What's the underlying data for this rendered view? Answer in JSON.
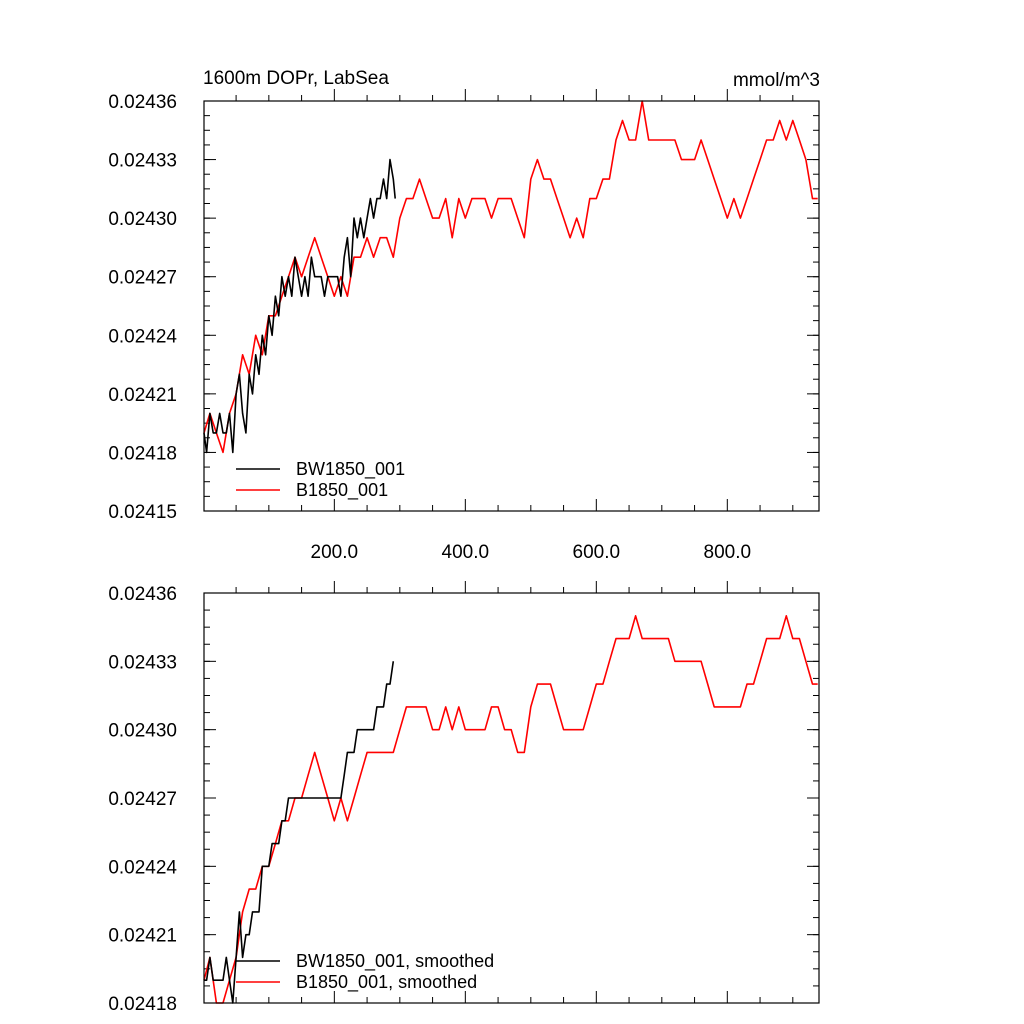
{
  "chart_data": [
    {
      "type": "line",
      "title": "1600m DOPr, LabSea",
      "units": "mmol/m^3",
      "xlim": [
        1,
        940
      ],
      "ylim": [
        0.02415,
        0.02436
      ],
      "x_ticks": [
        200,
        400,
        600,
        800
      ],
      "x_tick_labels": [
        "200.0",
        "400.0",
        "600.0",
        "800.0"
      ],
      "y_ticks": [
        0.02415,
        0.02418,
        0.02421,
        0.02424,
        0.02427,
        0.0243,
        0.02433,
        0.02436
      ],
      "y_tick_labels": [
        "0.02415",
        "0.02418",
        "0.02421",
        "0.02424",
        "0.02427",
        "0.02430",
        "0.02433",
        "0.02436"
      ],
      "grid": false,
      "legend_position": "bottom-left",
      "series": [
        {
          "name": "BW1850_001",
          "color": "#000000",
          "x": [
            1,
            5,
            10,
            15,
            20,
            25,
            30,
            35,
            40,
            45,
            50,
            55,
            60,
            65,
            70,
            75,
            80,
            85,
            90,
            95,
            100,
            105,
            110,
            115,
            120,
            125,
            130,
            135,
            140,
            145,
            150,
            155,
            160,
            165,
            170,
            175,
            180,
            185,
            190,
            195,
            200,
            205,
            210,
            215,
            220,
            225,
            230,
            235,
            240,
            245,
            250,
            255,
            260,
            265,
            270,
            275,
            280,
            285,
            290,
            293
          ],
          "y": [
            0.02419,
            0.02418,
            0.0242,
            0.02419,
            0.02419,
            0.0242,
            0.02419,
            0.02419,
            0.0242,
            0.02418,
            0.02421,
            0.02422,
            0.0242,
            0.02419,
            0.02422,
            0.02421,
            0.02423,
            0.02422,
            0.02424,
            0.02423,
            0.02425,
            0.02424,
            0.02426,
            0.02425,
            0.02427,
            0.02426,
            0.02427,
            0.02426,
            0.02428,
            0.02427,
            0.02426,
            0.02427,
            0.02426,
            0.02428,
            0.02427,
            0.02427,
            0.02427,
            0.02426,
            0.02427,
            0.02427,
            0.02427,
            0.02427,
            0.02426,
            0.02428,
            0.02429,
            0.02427,
            0.0243,
            0.02429,
            0.0243,
            0.02429,
            0.0243,
            0.02431,
            0.0243,
            0.02431,
            0.02431,
            0.02432,
            0.02431,
            0.02433,
            0.02432,
            0.02431
          ]
        },
        {
          "name": "B1850_001",
          "color": "#ff0000",
          "x": [
            1,
            10,
            20,
            30,
            40,
            50,
            60,
            70,
            80,
            90,
            100,
            110,
            120,
            130,
            140,
            150,
            160,
            170,
            180,
            190,
            200,
            210,
            220,
            230,
            240,
            250,
            260,
            270,
            280,
            290,
            300,
            310,
            320,
            330,
            340,
            350,
            360,
            370,
            380,
            390,
            400,
            410,
            420,
            430,
            440,
            450,
            460,
            470,
            480,
            490,
            500,
            510,
            520,
            530,
            540,
            550,
            560,
            570,
            580,
            590,
            600,
            610,
            620,
            630,
            640,
            650,
            660,
            670,
            680,
            690,
            700,
            710,
            720,
            730,
            740,
            750,
            760,
            770,
            780,
            790,
            800,
            810,
            820,
            830,
            840,
            850,
            860,
            870,
            880,
            890,
            900,
            910,
            920,
            930,
            938
          ],
          "y": [
            0.02419,
            0.0242,
            0.02419,
            0.02418,
            0.0242,
            0.02421,
            0.02423,
            0.02422,
            0.02424,
            0.02423,
            0.02425,
            0.02425,
            0.02426,
            0.02427,
            0.02428,
            0.02427,
            0.02428,
            0.02429,
            0.02428,
            0.02427,
            0.02426,
            0.02427,
            0.02426,
            0.02428,
            0.02428,
            0.02429,
            0.02428,
            0.02429,
            0.02429,
            0.02428,
            0.0243,
            0.02431,
            0.02431,
            0.02432,
            0.02431,
            0.0243,
            0.0243,
            0.02431,
            0.02429,
            0.02431,
            0.0243,
            0.02431,
            0.02431,
            0.02431,
            0.0243,
            0.02431,
            0.02431,
            0.02431,
            0.0243,
            0.02429,
            0.02432,
            0.02433,
            0.02432,
            0.02432,
            0.02431,
            0.0243,
            0.02429,
            0.0243,
            0.02429,
            0.02431,
            0.02431,
            0.02432,
            0.02432,
            0.02434,
            0.02435,
            0.02434,
            0.02434,
            0.02436,
            0.02434,
            0.02434,
            0.02434,
            0.02434,
            0.02434,
            0.02433,
            0.02433,
            0.02433,
            0.02434,
            0.02433,
            0.02432,
            0.02431,
            0.0243,
            0.02431,
            0.0243,
            0.02431,
            0.02432,
            0.02433,
            0.02434,
            0.02434,
            0.02435,
            0.02434,
            0.02435,
            0.02434,
            0.02433,
            0.02431,
            0.02431
          ]
        }
      ]
    },
    {
      "type": "line",
      "title": "",
      "xlim": [
        1,
        940
      ],
      "ylim": [
        0.02418,
        0.02436
      ],
      "x_ticks": [
        200,
        400,
        600,
        800
      ],
      "y_ticks": [
        0.02418,
        0.02421,
        0.02424,
        0.02427,
        0.0243,
        0.02433,
        0.02436
      ],
      "y_tick_labels": [
        "0.02418",
        "0.02421",
        "0.02424",
        "0.02427",
        "0.02430",
        "0.02433",
        "0.02436"
      ],
      "grid": false,
      "legend_position": "bottom-left",
      "series": [
        {
          "name": "BW1850_001, smoothed",
          "color": "#000000",
          "x": [
            1,
            5,
            10,
            15,
            20,
            25,
            30,
            35,
            40,
            45,
            50,
            55,
            60,
            65,
            70,
            75,
            80,
            85,
            90,
            95,
            100,
            105,
            110,
            115,
            120,
            125,
            130,
            135,
            140,
            145,
            150,
            155,
            160,
            165,
            170,
            175,
            180,
            185,
            190,
            195,
            200,
            205,
            210,
            215,
            220,
            225,
            230,
            235,
            240,
            245,
            250,
            255,
            260,
            265,
            270,
            275,
            280,
            285,
            290
          ],
          "y": [
            0.02419,
            0.02419,
            0.0242,
            0.02419,
            0.02419,
            0.02419,
            0.02419,
            0.0242,
            0.02419,
            0.02418,
            0.0242,
            0.02422,
            0.0242,
            0.02421,
            0.02421,
            0.02422,
            0.02422,
            0.02422,
            0.02424,
            0.02424,
            0.02424,
            0.02425,
            0.02425,
            0.02425,
            0.02426,
            0.02426,
            0.02427,
            0.02427,
            0.02427,
            0.02427,
            0.02427,
            0.02427,
            0.02427,
            0.02427,
            0.02427,
            0.02427,
            0.02427,
            0.02427,
            0.02427,
            0.02427,
            0.02427,
            0.02427,
            0.02427,
            0.02428,
            0.02429,
            0.02429,
            0.02429,
            0.0243,
            0.0243,
            0.0243,
            0.0243,
            0.0243,
            0.0243,
            0.02431,
            0.02431,
            0.02431,
            0.02432,
            0.02432,
            0.02433
          ]
        },
        {
          "name": "B1850_001, smoothed",
          "color": "#ff0000",
          "x": [
            1,
            10,
            20,
            30,
            40,
            50,
            60,
            70,
            80,
            90,
            100,
            110,
            120,
            130,
            140,
            150,
            160,
            170,
            180,
            190,
            200,
            210,
            220,
            230,
            240,
            250,
            260,
            270,
            280,
            290,
            300,
            310,
            320,
            330,
            340,
            350,
            360,
            370,
            380,
            390,
            400,
            410,
            420,
            430,
            440,
            450,
            460,
            470,
            480,
            490,
            500,
            510,
            520,
            530,
            540,
            550,
            560,
            570,
            580,
            590,
            600,
            610,
            620,
            630,
            640,
            650,
            660,
            670,
            680,
            690,
            700,
            710,
            720,
            730,
            740,
            750,
            760,
            770,
            780,
            790,
            800,
            810,
            820,
            830,
            840,
            850,
            860,
            870,
            880,
            890,
            900,
            910,
            920,
            930,
            938
          ],
          "y": [
            0.02419,
            0.0242,
            0.02418,
            0.02418,
            0.02419,
            0.0242,
            0.02422,
            0.02423,
            0.02423,
            0.02424,
            0.02424,
            0.02425,
            0.02426,
            0.02426,
            0.02427,
            0.02427,
            0.02428,
            0.02429,
            0.02428,
            0.02427,
            0.02426,
            0.02427,
            0.02426,
            0.02427,
            0.02428,
            0.02429,
            0.02429,
            0.02429,
            0.02429,
            0.02429,
            0.0243,
            0.02431,
            0.02431,
            0.02431,
            0.02431,
            0.0243,
            0.0243,
            0.02431,
            0.0243,
            0.02431,
            0.0243,
            0.0243,
            0.0243,
            0.0243,
            0.02431,
            0.02431,
            0.0243,
            0.0243,
            0.02429,
            0.02429,
            0.02431,
            0.02432,
            0.02432,
            0.02432,
            0.02431,
            0.0243,
            0.0243,
            0.0243,
            0.0243,
            0.02431,
            0.02432,
            0.02432,
            0.02433,
            0.02434,
            0.02434,
            0.02434,
            0.02435,
            0.02434,
            0.02434,
            0.02434,
            0.02434,
            0.02434,
            0.02433,
            0.02433,
            0.02433,
            0.02433,
            0.02433,
            0.02432,
            0.02431,
            0.02431,
            0.02431,
            0.02431,
            0.02431,
            0.02432,
            0.02432,
            0.02433,
            0.02434,
            0.02434,
            0.02434,
            0.02435,
            0.02434,
            0.02434,
            0.02433,
            0.02432,
            0.02432
          ]
        }
      ]
    }
  ]
}
